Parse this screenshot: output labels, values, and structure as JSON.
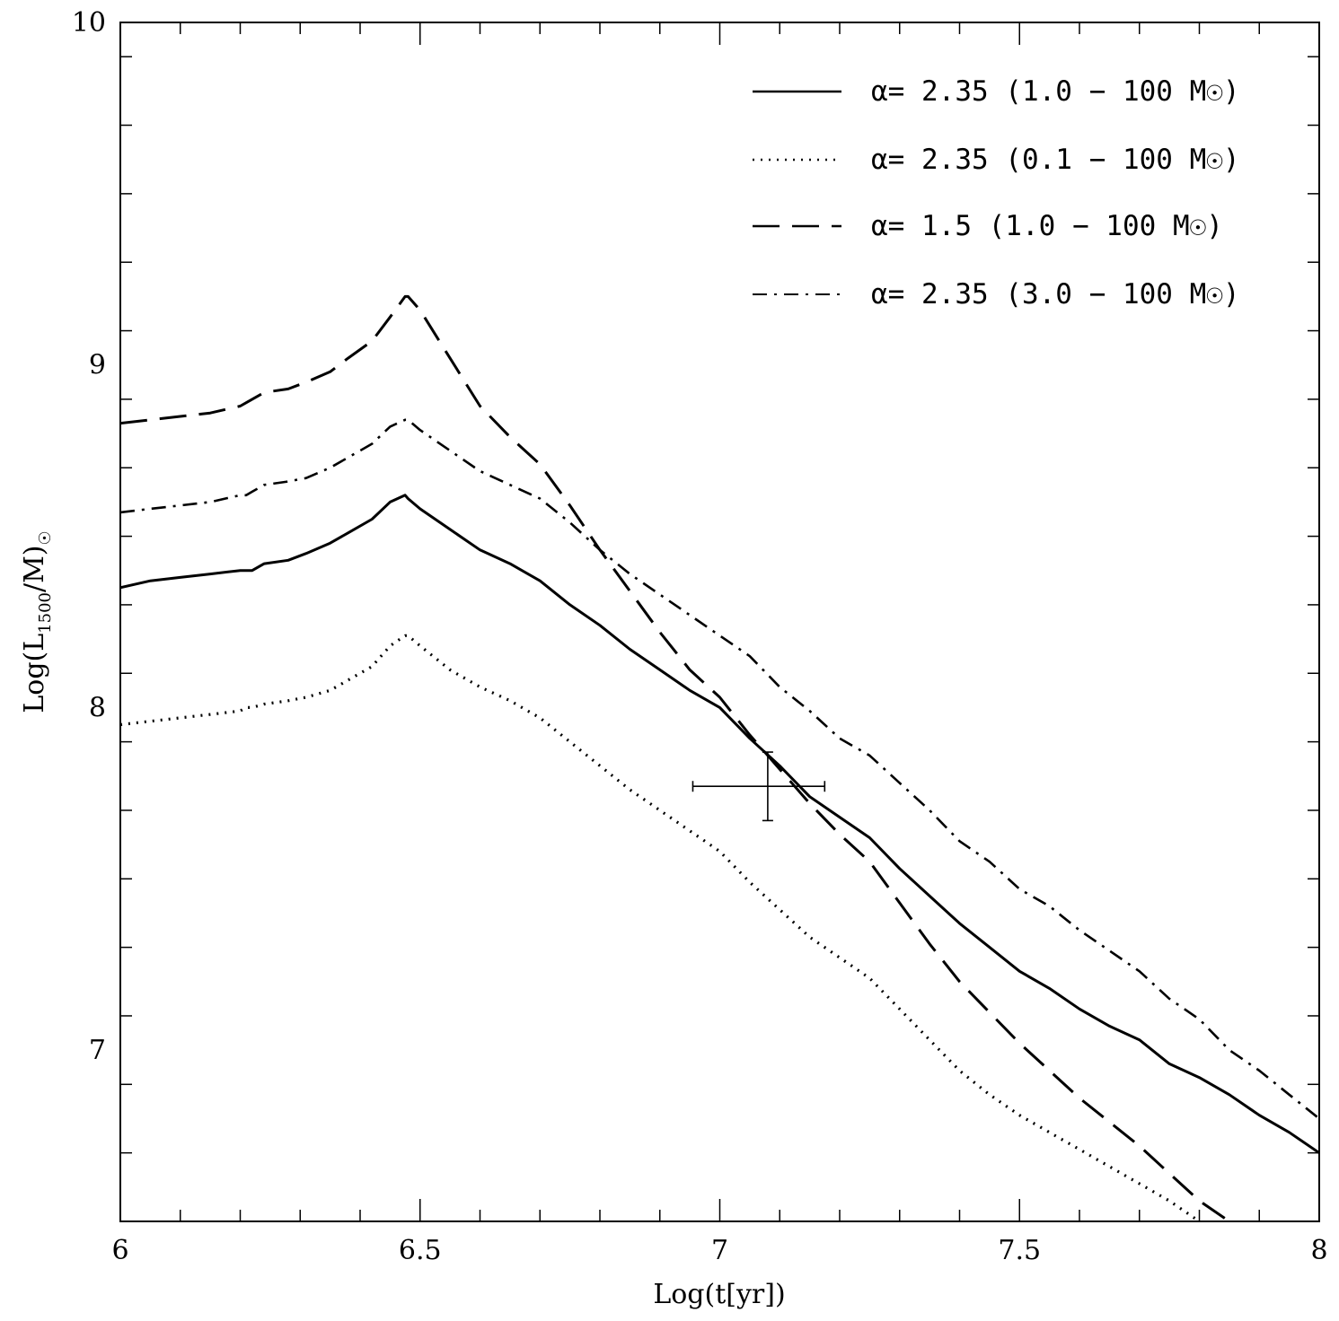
{
  "chart_data": {
    "type": "line",
    "xlabel": "Log(t[yr])",
    "ylabel_main": "Log(L",
    "ylabel_sub": "1500",
    "ylabel_tail": "/M)",
    "ylabel_sun": "☉",
    "xlim": [
      6,
      8
    ],
    "ylim": [
      6.5,
      10
    ],
    "x_ticks": [
      6,
      6.5,
      7,
      7.5,
      8
    ],
    "x_tick_labels": [
      "6",
      "6.5",
      "7",
      "7.5",
      "8"
    ],
    "y_ticks": [
      7,
      8,
      9,
      10
    ],
    "y_tick_labels": [
      "7",
      "8",
      "9",
      "10"
    ],
    "x_minor_step": 0.1,
    "y_minor_step": 0.2,
    "legend_position": "top-right",
    "series": [
      {
        "name": "α= 2.35 (1.0 − 100 M☉)",
        "style": "solid",
        "x": [
          6.0,
          6.05,
          6.1,
          6.15,
          6.2,
          6.21,
          6.22,
          6.24,
          6.28,
          6.31,
          6.35,
          6.38,
          6.42,
          6.45,
          6.475,
          6.48,
          6.5,
          6.55,
          6.6,
          6.65,
          6.7,
          6.75,
          6.8,
          6.85,
          6.9,
          6.95,
          7.0,
          7.05,
          7.1,
          7.15,
          7.2,
          7.25,
          7.3,
          7.35,
          7.4,
          7.45,
          7.5,
          7.55,
          7.6,
          7.65,
          7.7,
          7.75,
          7.8,
          7.85,
          7.9,
          7.95,
          8.0
        ],
        "y": [
          8.35,
          8.37,
          8.38,
          8.39,
          8.4,
          8.4,
          8.4,
          8.42,
          8.43,
          8.45,
          8.48,
          8.51,
          8.55,
          8.6,
          8.62,
          8.61,
          8.58,
          8.52,
          8.46,
          8.42,
          8.37,
          8.3,
          8.24,
          8.17,
          8.11,
          8.05,
          8.0,
          7.91,
          7.83,
          7.74,
          7.68,
          7.62,
          7.53,
          7.45,
          7.37,
          7.3,
          7.23,
          7.18,
          7.12,
          7.07,
          7.03,
          6.96,
          6.92,
          6.87,
          6.81,
          6.76,
          6.7
        ]
      },
      {
        "name": "α= 2.35 (0.1 − 100 M☉)",
        "style": "dotted",
        "x": [
          6.0,
          6.05,
          6.1,
          6.15,
          6.2,
          6.21,
          6.22,
          6.24,
          6.28,
          6.31,
          6.35,
          6.38,
          6.42,
          6.45,
          6.475,
          6.48,
          6.5,
          6.55,
          6.6,
          6.65,
          6.7,
          6.75,
          6.8,
          6.85,
          6.9,
          6.95,
          7.0,
          7.05,
          7.1,
          7.15,
          7.2,
          7.25,
          7.3,
          7.35,
          7.4,
          7.45,
          7.5,
          7.55,
          7.6,
          7.65,
          7.7,
          7.75,
          7.8
        ],
        "y": [
          7.95,
          7.96,
          7.97,
          7.98,
          7.99,
          8.0,
          8.0,
          8.01,
          8.02,
          8.03,
          8.05,
          8.08,
          8.12,
          8.18,
          8.21,
          8.21,
          8.18,
          8.11,
          8.06,
          8.02,
          7.97,
          7.9,
          7.83,
          7.76,
          7.7,
          7.64,
          7.58,
          7.49,
          7.41,
          7.33,
          7.27,
          7.21,
          7.12,
          7.03,
          6.94,
          6.87,
          6.81,
          6.76,
          6.71,
          6.66,
          6.61,
          6.56,
          6.5
        ]
      },
      {
        "name": "α= 1.5  (1.0 − 100 M☉)",
        "style": "dashed",
        "x": [
          6.0,
          6.05,
          6.1,
          6.15,
          6.2,
          6.21,
          6.22,
          6.24,
          6.28,
          6.31,
          6.35,
          6.38,
          6.42,
          6.45,
          6.475,
          6.48,
          6.5,
          6.55,
          6.6,
          6.65,
          6.7,
          6.75,
          6.8,
          6.85,
          6.9,
          6.95,
          7.0,
          7.05,
          7.1,
          7.15,
          7.2,
          7.25,
          7.3,
          7.35,
          7.4,
          7.45,
          7.5,
          7.55,
          7.6,
          7.65,
          7.7,
          7.75,
          7.8,
          7.85
        ],
        "y": [
          8.83,
          8.84,
          8.85,
          8.86,
          8.88,
          8.89,
          8.9,
          8.92,
          8.93,
          8.95,
          8.98,
          9.02,
          9.07,
          9.14,
          9.2,
          9.2,
          9.16,
          9.02,
          8.88,
          8.79,
          8.71,
          8.59,
          8.46,
          8.34,
          8.22,
          8.11,
          8.03,
          7.92,
          7.82,
          7.72,
          7.63,
          7.55,
          7.43,
          7.31,
          7.2,
          7.11,
          7.02,
          6.94,
          6.86,
          6.79,
          6.72,
          6.64,
          6.56,
          6.5
        ]
      },
      {
        "name": "α= 2.35  (3.0 − 100 M☉)",
        "style": "dashdot",
        "x": [
          6.0,
          6.05,
          6.1,
          6.15,
          6.2,
          6.21,
          6.22,
          6.24,
          6.28,
          6.31,
          6.35,
          6.38,
          6.42,
          6.45,
          6.475,
          6.48,
          6.5,
          6.55,
          6.6,
          6.65,
          6.7,
          6.75,
          6.8,
          6.85,
          6.9,
          6.95,
          7.0,
          7.05,
          7.1,
          7.15,
          7.2,
          7.25,
          7.3,
          7.35,
          7.4,
          7.45,
          7.5,
          7.55,
          7.6,
          7.65,
          7.7,
          7.75,
          7.8,
          7.85,
          7.9,
          7.95,
          8.0
        ],
        "y": [
          8.57,
          8.58,
          8.59,
          8.6,
          8.62,
          8.62,
          8.63,
          8.65,
          8.66,
          8.67,
          8.7,
          8.73,
          8.77,
          8.82,
          8.84,
          8.84,
          8.81,
          8.75,
          8.69,
          8.65,
          8.61,
          8.54,
          8.46,
          8.39,
          8.33,
          8.27,
          8.21,
          8.15,
          8.06,
          7.99,
          7.91,
          7.86,
          7.78,
          7.7,
          7.61,
          7.55,
          7.47,
          7.42,
          7.35,
          7.29,
          7.23,
          7.15,
          7.09,
          7.0,
          6.94,
          6.87,
          6.8
        ]
      }
    ],
    "error_point": {
      "x": 7.08,
      "y": 7.77,
      "xerr": [
        0.125,
        0.095
      ],
      "yerr": [
        0.1,
        0.1
      ]
    }
  }
}
